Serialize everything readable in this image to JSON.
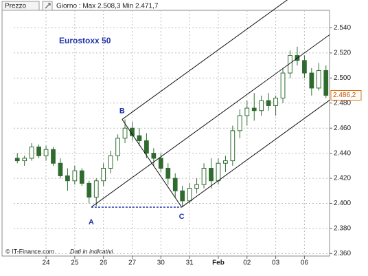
{
  "chart_data": {
    "type": "candlestick",
    "header": "Prezzo",
    "subtitle": "Giorno : Max 2.508,3 Min 2.471,7",
    "title": "Eurostoxx 50",
    "footer_source": "© IT-Finance.com",
    "footer_note": "Dati in indicativi",
    "color": "#2f6b2f",
    "x": [
      0,
      1,
      2,
      3,
      4,
      5,
      6,
      7,
      8,
      9,
      10,
      11,
      12,
      13,
      14,
      15,
      16,
      17,
      18,
      19,
      20,
      21,
      22,
      23,
      24,
      25,
      26,
      27,
      28,
      29,
      30,
      31,
      32,
      33,
      34,
      35,
      36,
      37,
      38,
      39,
      40,
      41,
      42,
      43
    ],
    "open": [
      2436,
      2434,
      2436,
      2445,
      2438,
      2443,
      2432,
      2422,
      2418,
      2426,
      2416,
      2405,
      2418,
      2428,
      2438,
      2452,
      2460,
      2454,
      2450,
      2440,
      2436,
      2428,
      2420,
      2410,
      2402,
      2412,
      2415,
      2428,
      2418,
      2432,
      2434,
      2458,
      2470,
      2476,
      2474,
      2482,
      2478,
      2484,
      2504,
      2518,
      2514,
      2504,
      2492,
      2506
    ],
    "high": [
      2440,
      2438,
      2448,
      2447,
      2446,
      2445,
      2436,
      2428,
      2430,
      2428,
      2418,
      2420,
      2432,
      2442,
      2455,
      2467,
      2465,
      2460,
      2456,
      2444,
      2440,
      2432,
      2424,
      2414,
      2416,
      2420,
      2432,
      2436,
      2436,
      2438,
      2462,
      2475,
      2482,
      2488,
      2486,
      2488,
      2486,
      2508,
      2522,
      2525,
      2518,
      2508,
      2512,
      2510
    ],
    "low": [
      2432,
      2430,
      2434,
      2436,
      2434,
      2430,
      2420,
      2410,
      2415,
      2414,
      2400,
      2398,
      2414,
      2424,
      2434,
      2448,
      2450,
      2446,
      2436,
      2430,
      2425,
      2415,
      2405,
      2397,
      2400,
      2408,
      2412,
      2412,
      2415,
      2425,
      2430,
      2452,
      2462,
      2466,
      2470,
      2474,
      2470,
      2480,
      2500,
      2510,
      2500,
      2486,
      2490,
      2484
    ],
    "close": [
      2434,
      2436,
      2445,
      2438,
      2443,
      2432,
      2422,
      2418,
      2426,
      2416,
      2405,
      2418,
      2428,
      2438,
      2452,
      2460,
      2454,
      2450,
      2440,
      2436,
      2428,
      2420,
      2410,
      2402,
      2412,
      2415,
      2428,
      2418,
      2432,
      2434,
      2458,
      2470,
      2476,
      2474,
      2482,
      2478,
      2484,
      2504,
      2518,
      2514,
      2504,
      2492,
      2506,
      2486.2
    ],
    "xlim": [
      -0.5,
      43.5
    ],
    "xticks": [
      {
        "value": 4,
        "label": "24"
      },
      {
        "value": 8,
        "label": "25"
      },
      {
        "value": 12,
        "label": "26"
      },
      {
        "value": 16,
        "label": "27"
      },
      {
        "value": 20,
        "label": "30"
      },
      {
        "value": 24,
        "label": "31"
      },
      {
        "value": 28,
        "label": "Feb"
      },
      {
        "value": 32,
        "label": "02"
      },
      {
        "value": 36,
        "label": "03"
      },
      {
        "value": 40,
        "label": "06"
      }
    ],
    "ylim": [
      2358,
      2554
    ],
    "yticks": [
      {
        "value": 2360,
        "label": "2.360"
      },
      {
        "value": 2380,
        "label": "2.380"
      },
      {
        "value": 2400,
        "label": "2.400"
      },
      {
        "value": 2420,
        "label": "2.420"
      },
      {
        "value": 2440,
        "label": "2.440"
      },
      {
        "value": 2460,
        "label": "2.460"
      },
      {
        "value": 2480,
        "label": "2.480"
      },
      {
        "value": 2500,
        "label": "2.500"
      },
      {
        "value": 2520,
        "label": "2.520"
      },
      {
        "value": 2540,
        "label": "2.540"
      }
    ],
    "grid": true,
    "last_price": {
      "value": 2486.2,
      "label": "2.486,2"
    },
    "pivots": [
      {
        "label": "A",
        "x": 10.3,
        "y": 2397
      },
      {
        "label": "B",
        "x": 14.6,
        "y": 2467
      },
      {
        "label": "C",
        "x": 22.9,
        "y": 2397
      }
    ]
  }
}
